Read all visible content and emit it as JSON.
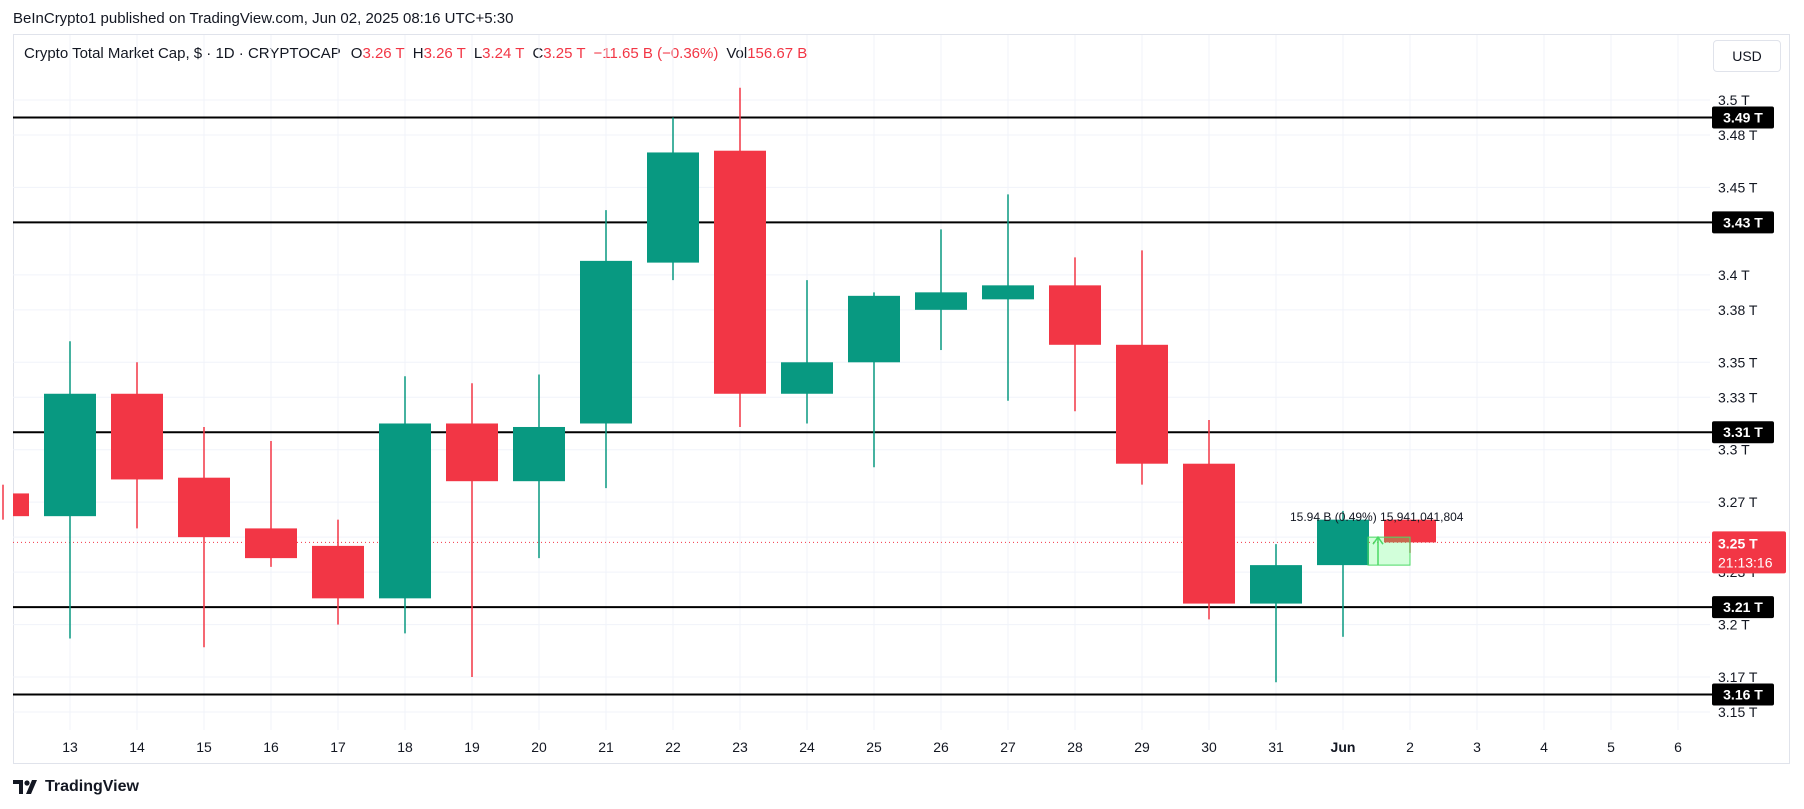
{
  "header": {
    "publisher": "BeInCrypto1 published on TradingView.com, Jun 02, 2025 08:16 UTC+5:30"
  },
  "legend": {
    "symbol": "Crypto Total Market Cap, $ · 1D · CRYPTOCAP",
    "o_label": "O",
    "o_value": "3.26 T",
    "h_label": "H",
    "h_value": "3.26 T",
    "l_label": "L",
    "l_value": "3.24 T",
    "c_label": "C",
    "c_value": "3.25 T",
    "change": "−11.65 B (−0.36%)",
    "vol_label": "Vol",
    "vol_value": "156.67 B"
  },
  "currency_button": "USD",
  "footer": {
    "brand": "TradingView"
  },
  "colors": {
    "up": "#089981",
    "down": "#f23645",
    "grid": "#f0f3fa",
    "level": "#000000"
  },
  "chart_data": {
    "type": "candlestick",
    "interval": "1D",
    "x_ticks": [
      "13",
      "14",
      "15",
      "16",
      "17",
      "18",
      "19",
      "20",
      "21",
      "22",
      "23",
      "24",
      "25",
      "26",
      "27",
      "28",
      "29",
      "30",
      "31",
      "Jun",
      "2",
      "3",
      "4",
      "5",
      "6"
    ],
    "y_ticks": [
      "3.15 T",
      "3.17 T",
      "3.2 T",
      "3.23 T",
      "3.25 T",
      "3.27 T",
      "3.3 T",
      "3.33 T",
      "3.35 T",
      "3.38 T",
      "3.4 T",
      "3.45 T",
      "3.48 T",
      "3.5 T"
    ],
    "ylim": [
      3.14,
      3.51
    ],
    "candles": [
      {
        "x": "12",
        "open": 3.275,
        "high": 3.28,
        "low": 3.26,
        "close": 3.262
      },
      {
        "x": "13",
        "open": 3.262,
        "high": 3.362,
        "low": 3.192,
        "close": 3.332
      },
      {
        "x": "14",
        "open": 3.332,
        "high": 3.35,
        "low": 3.255,
        "close": 3.283
      },
      {
        "x": "15",
        "open": 3.284,
        "high": 3.313,
        "low": 3.187,
        "close": 3.25
      },
      {
        "x": "16",
        "open": 3.255,
        "high": 3.305,
        "low": 3.233,
        "close": 3.238
      },
      {
        "x": "17",
        "open": 3.245,
        "high": 3.26,
        "low": 3.2,
        "close": 3.215
      },
      {
        "x": "18",
        "open": 3.215,
        "high": 3.342,
        "low": 3.195,
        "close": 3.315
      },
      {
        "x": "19",
        "open": 3.315,
        "high": 3.338,
        "low": 3.17,
        "close": 3.282
      },
      {
        "x": "20",
        "open": 3.282,
        "high": 3.343,
        "low": 3.238,
        "close": 3.313
      },
      {
        "x": "21",
        "open": 3.315,
        "high": 3.437,
        "low": 3.278,
        "close": 3.408
      },
      {
        "x": "22",
        "open": 3.407,
        "high": 3.49,
        "low": 3.397,
        "close": 3.47
      },
      {
        "x": "23",
        "open": 3.471,
        "high": 3.507,
        "low": 3.313,
        "close": 3.332
      },
      {
        "x": "24",
        "open": 3.332,
        "high": 3.397,
        "low": 3.315,
        "close": 3.35
      },
      {
        "x": "25",
        "open": 3.35,
        "high": 3.39,
        "low": 3.29,
        "close": 3.388
      },
      {
        "x": "26",
        "open": 3.38,
        "high": 3.426,
        "low": 3.357,
        "close": 3.39
      },
      {
        "x": "27",
        "open": 3.386,
        "high": 3.446,
        "low": 3.328,
        "close": 3.394
      },
      {
        "x": "28",
        "open": 3.394,
        "high": 3.41,
        "low": 3.322,
        "close": 3.36
      },
      {
        "x": "29",
        "open": 3.36,
        "high": 3.414,
        "low": 3.28,
        "close": 3.292
      },
      {
        "x": "30",
        "open": 3.292,
        "high": 3.317,
        "low": 3.203,
        "close": 3.212
      },
      {
        "x": "31",
        "open": 3.212,
        "high": 3.246,
        "low": 3.167,
        "close": 3.234
      },
      {
        "x": "Jun",
        "open": 3.234,
        "high": 3.265,
        "low": 3.193,
        "close": 3.26
      },
      {
        "x": "2",
        "open": 3.26,
        "high": 3.26,
        "low": 3.241,
        "close": 3.247
      }
    ],
    "levels": [
      {
        "value": 3.49,
        "label": "3.49 T"
      },
      {
        "value": 3.43,
        "label": "3.43 T"
      },
      {
        "value": 3.31,
        "label": "3.31 T"
      },
      {
        "value": 3.21,
        "label": "3.21 T"
      },
      {
        "value": 3.16,
        "label": "3.16 T"
      }
    ],
    "current_price": {
      "value": 3.247,
      "label": "3.25 T",
      "countdown": "21:13:16"
    },
    "measure": {
      "label": "15.94 B (0.49%) 15,941,041,804",
      "from": 3.234,
      "to": 3.25
    },
    "grid": true
  }
}
